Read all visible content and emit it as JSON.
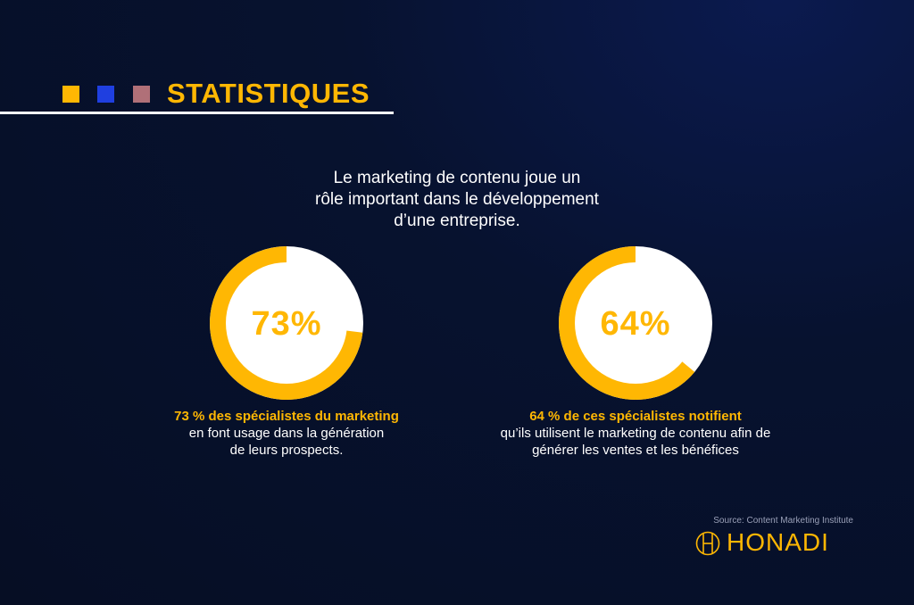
{
  "header": {
    "title": "STATISTIQUES",
    "squares": [
      "#ffb703",
      "#1f3fe0",
      "#b07078"
    ]
  },
  "intro": {
    "line1": "Le marketing de contenu joue un",
    "line2": "rôle important dans le développement",
    "line3": "d’une entreprise."
  },
  "colors": {
    "accent": "#ffb703",
    "donut_bg": "#ffffff",
    "text": "#ffffff",
    "background": "#07122f"
  },
  "chart_data": [
    {
      "type": "pie",
      "label": "73%",
      "values": [
        73,
        27
      ],
      "highlight": "73 % des spécialistes du marketing",
      "description_line1": "en font usage dans la génération",
      "description_line2": "de leurs prospects."
    },
    {
      "type": "pie",
      "label": "64%",
      "values": [
        64,
        36
      ],
      "highlight": "64 % de ces spécialistes notifient",
      "description_line1": "qu’ils utilisent le marketing de contenu afin de",
      "description_line2": "générer les ventes et les bénéfices"
    }
  ],
  "footer": {
    "source": "Source: Content Marketing Institute",
    "logo_text": "HONADI"
  }
}
